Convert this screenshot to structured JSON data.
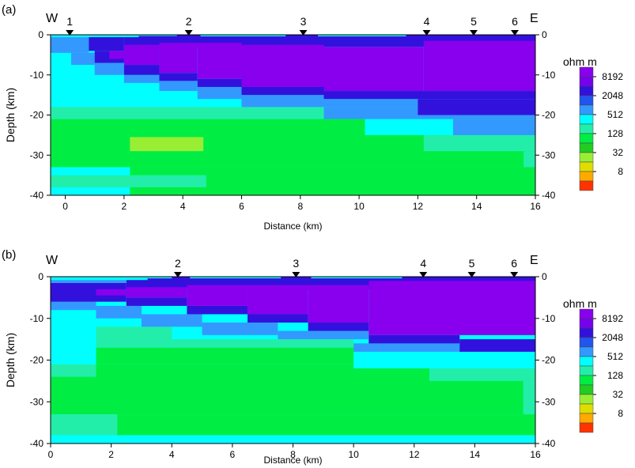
{
  "legend": {
    "title": "ohm m",
    "labels": [
      "8192",
      "2048",
      "512",
      "128",
      "32",
      "8"
    ],
    "scale": [
      {
        "value": 16384,
        "color": "#8800ee"
      },
      {
        "value": 8192,
        "color": "#7700ee"
      },
      {
        "value": 4096,
        "color": "#3311dd"
      },
      {
        "value": 2048,
        "color": "#2255ee"
      },
      {
        "value": 1024,
        "color": "#3399ff"
      },
      {
        "value": 512,
        "color": "#00ffff"
      },
      {
        "value": 256,
        "color": "#22eeaa"
      },
      {
        "value": 128,
        "color": "#00ee44"
      },
      {
        "value": 64,
        "color": "#22cc22"
      },
      {
        "value": 32,
        "color": "#99ee33"
      },
      {
        "value": 16,
        "color": "#dddd00"
      },
      {
        "value": 8,
        "color": "#ffaa00"
      },
      {
        "value": 4,
        "color": "#ff3300"
      }
    ]
  },
  "chart_data": [
    {
      "type": "heatmap",
      "panel_label": "(a)",
      "west_label": "W",
      "east_label": "E",
      "xlabel": "Distance (km)",
      "ylabel": "Depth (km)",
      "xlim": [
        -0.5,
        16
      ],
      "ylim": [
        -40,
        0
      ],
      "x_ticks": [
        0,
        2,
        4,
        6,
        8,
        10,
        12,
        14,
        16
      ],
      "y_ticks": [
        0,
        -10,
        -20,
        -30,
        -40
      ],
      "stations": [
        {
          "label": "1",
          "x": 0.15
        },
        {
          "label": "2",
          "x": 4.2
        },
        {
          "label": "3",
          "x": 8.1
        },
        {
          "label": "4",
          "x": 12.3
        },
        {
          "label": "5",
          "x": 13.9
        },
        {
          "label": "6",
          "x": 15.3
        }
      ],
      "cells": [
        {
          "x0": -0.5,
          "x1": 16,
          "y0": -40,
          "y1": 0,
          "resistivity": 512
        },
        {
          "x0": 2.2,
          "x1": 16,
          "y0": -40,
          "y1": -33,
          "resistivity": 128
        },
        {
          "x0": -0.5,
          "x1": 4.8,
          "y0": -38,
          "y1": -35,
          "resistivity": 256
        },
        {
          "x0": 4.8,
          "x1": 11.0,
          "y0": -38,
          "y1": -35,
          "resistivity": 128
        },
        {
          "x0": -0.5,
          "x1": 16,
          "y0": -33,
          "y1": -21,
          "resistivity": 128
        },
        {
          "x0": 2.2,
          "x1": 4.7,
          "y0": -29,
          "y1": -25.5,
          "resistivity": 32
        },
        {
          "x0": 15.6,
          "x1": 16,
          "y0": -33,
          "y1": -29,
          "resistivity": 256
        },
        {
          "x0": 12.2,
          "x1": 16,
          "y0": -29,
          "y1": -25,
          "resistivity": 256
        },
        {
          "x0": 10.2,
          "x1": 13.2,
          "y0": -25,
          "y1": -21,
          "resistivity": 512
        },
        {
          "x0": -0.5,
          "x1": 8.8,
          "y0": -21,
          "y1": -18,
          "resistivity": 256
        },
        {
          "x0": 8.8,
          "x1": 16,
          "y0": -21,
          "y1": -18,
          "resistivity": 1024
        },
        {
          "x0": 13.2,
          "x1": 16,
          "y0": -25,
          "y1": -21,
          "resistivity": 1024
        },
        {
          "x0": 8.8,
          "x1": 12.0,
          "y0": -18,
          "y1": -16,
          "resistivity": 1024
        },
        {
          "x0": 12.0,
          "x1": 16,
          "y0": -20,
          "y1": -16,
          "resistivity": 4096
        },
        {
          "x0": 6.0,
          "x1": 8.8,
          "y0": -18,
          "y1": -15,
          "resistivity": 1024
        },
        {
          "x0": 8.8,
          "x1": 16,
          "y0": -16,
          "y1": -14,
          "resistivity": 4096
        },
        {
          "x0": 4.5,
          "x1": 6.0,
          "y0": -16,
          "y1": -13,
          "resistivity": 1024
        },
        {
          "x0": 6.0,
          "x1": 8.8,
          "y0": -15,
          "y1": -13,
          "resistivity": 4096
        },
        {
          "x0": 3.2,
          "x1": 4.5,
          "y0": -14,
          "y1": -11.5,
          "resistivity": 1024
        },
        {
          "x0": 2.0,
          "x1": 3.2,
          "y0": -12,
          "y1": -10,
          "resistivity": 1024
        },
        {
          "x0": 1.0,
          "x1": 2.0,
          "y0": -10,
          "y1": -7,
          "resistivity": 1024
        },
        {
          "x0": 0.2,
          "x1": 1.0,
          "y0": -7.5,
          "y1": -4.5,
          "resistivity": 1024
        },
        {
          "x0": -0.5,
          "x1": 0.8,
          "y0": -4.5,
          "y1": 0,
          "resistivity": 1024
        },
        {
          "x0": 4.5,
          "x1": 6.0,
          "y0": -13,
          "y1": -11,
          "resistivity": 4096
        },
        {
          "x0": 3.2,
          "x1": 4.5,
          "y0": -11.5,
          "y1": -9.5,
          "resistivity": 4096
        },
        {
          "x0": 2.0,
          "x1": 3.2,
          "y0": -10,
          "y1": -7.5,
          "resistivity": 4096
        },
        {
          "x0": 1.0,
          "x1": 2.0,
          "y0": -7,
          "y1": -4,
          "resistivity": 4096
        },
        {
          "x0": 0.8,
          "x1": 2.0,
          "y0": -4,
          "y1": 0,
          "resistivity": 4096
        },
        {
          "x0": 2.0,
          "x1": 16,
          "y0": -3,
          "y1": 0,
          "resistivity": 4096
        },
        {
          "x0": 12.2,
          "x1": 16,
          "y0": -14,
          "y1": -1.5,
          "resistivity": 16384
        },
        {
          "x0": 8.8,
          "x1": 12.2,
          "y0": -14,
          "y1": -3,
          "resistivity": 16384
        },
        {
          "x0": 6.0,
          "x1": 8.8,
          "y0": -13,
          "y1": -2.5,
          "resistivity": 16384
        },
        {
          "x0": 4.5,
          "x1": 6.0,
          "y0": -11,
          "y1": -2,
          "resistivity": 16384
        },
        {
          "x0": 3.2,
          "x1": 4.5,
          "y0": -9.5,
          "y1": -2,
          "resistivity": 16384
        },
        {
          "x0": 2.0,
          "x1": 3.2,
          "y0": -7.5,
          "y1": -2.5,
          "resistivity": 16384
        },
        {
          "x0": 1.5,
          "x1": 2.0,
          "y0": -6,
          "y1": -4,
          "resistivity": 16384
        },
        {
          "x0": -0.5,
          "x1": 2.5,
          "y0": -0.6,
          "y1": 0,
          "resistivity": 512
        },
        {
          "x0": 2.5,
          "x1": 3.8,
          "y0": -0.3,
          "y1": 0,
          "resistivity": 512
        },
        {
          "x0": 4.6,
          "x1": 7.5,
          "y0": -0.4,
          "y1": 0,
          "resistivity": 512
        },
        {
          "x0": 8.6,
          "x1": 11.6,
          "y0": -0.4,
          "y1": 0,
          "resistivity": 512
        }
      ]
    },
    {
      "type": "heatmap",
      "panel_label": "(b)",
      "west_label": "W",
      "east_label": "E",
      "xlabel": "Distance (km)",
      "ylabel": "Depth (km)",
      "xlim": [
        0,
        16
      ],
      "ylim": [
        -40,
        0
      ],
      "x_ticks": [
        0,
        2,
        4,
        6,
        8,
        10,
        12,
        14,
        16
      ],
      "y_ticks": [
        0,
        -10,
        -20,
        -30,
        -40
      ],
      "stations": [
        {
          "label": "2",
          "x": 4.2
        },
        {
          "label": "3",
          "x": 8.1
        },
        {
          "label": "4",
          "x": 12.3
        },
        {
          "label": "5",
          "x": 13.9
        },
        {
          "label": "6",
          "x": 15.3
        }
      ],
      "cells": [
        {
          "x0": 0,
          "x1": 16,
          "y0": -40,
          "y1": 0,
          "resistivity": 512
        },
        {
          "x0": 0,
          "x1": 9.0,
          "y0": -38,
          "y1": -33,
          "resistivity": 256
        },
        {
          "x0": 2.2,
          "x1": 16,
          "y0": -38,
          "y1": -33,
          "resistivity": 128
        },
        {
          "x0": 0,
          "x1": 16,
          "y0": -33,
          "y1": -22,
          "resistivity": 128
        },
        {
          "x0": 0,
          "x1": 2.2,
          "y0": -36,
          "y1": -33,
          "resistivity": 256
        },
        {
          "x0": 0,
          "x1": 1.5,
          "y0": -24,
          "y1": -21,
          "resistivity": 256
        },
        {
          "x0": 15.6,
          "x1": 16,
          "y0": -33,
          "y1": -25,
          "resistivity": 256
        },
        {
          "x0": 12.5,
          "x1": 16,
          "y0": -25,
          "y1": -22,
          "resistivity": 256
        },
        {
          "x0": 1.5,
          "x1": 12.5,
          "y0": -24,
          "y1": -21,
          "resistivity": 128
        },
        {
          "x0": 1.5,
          "x1": 10.0,
          "y0": -21,
          "y1": -17,
          "resistivity": 128
        },
        {
          "x0": 10.0,
          "x1": 16,
          "y0": -22,
          "y1": -18,
          "resistivity": 512
        },
        {
          "x0": 1.5,
          "x1": 4.0,
          "y0": -17,
          "y1": -12,
          "resistivity": 256
        },
        {
          "x0": 0,
          "x1": 1.5,
          "y0": -21,
          "y1": -10,
          "resistivity": 512
        },
        {
          "x0": 4.0,
          "x1": 10.0,
          "y0": -17,
          "y1": -15,
          "resistivity": 256
        },
        {
          "x0": 10.0,
          "x1": 13.5,
          "y0": -18,
          "y1": -16,
          "resistivity": 1024
        },
        {
          "x0": 13.5,
          "x1": 16,
          "y0": -18,
          "y1": -15,
          "resistivity": 4096
        },
        {
          "x0": 10.5,
          "x1": 13.5,
          "y0": -16,
          "y1": -14,
          "resistivity": 4096
        },
        {
          "x0": 7.5,
          "x1": 10.5,
          "y0": -15,
          "y1": -13,
          "resistivity": 1024
        },
        {
          "x0": 5.0,
          "x1": 7.5,
          "y0": -14,
          "y1": -11,
          "resistivity": 1024
        },
        {
          "x0": 3.0,
          "x1": 5.0,
          "y0": -12,
          "y1": -9,
          "resistivity": 1024
        },
        {
          "x0": 1.5,
          "x1": 3.0,
          "y0": -10,
          "y1": -7,
          "resistivity": 1024
        },
        {
          "x0": 0,
          "x1": 1.5,
          "y0": -8,
          "y1": -6,
          "resistivity": 1024
        },
        {
          "x0": 8.5,
          "x1": 10.5,
          "y0": -13,
          "y1": -11,
          "resistivity": 4096
        },
        {
          "x0": 6.5,
          "x1": 8.5,
          "y0": -11,
          "y1": -9,
          "resistivity": 4096
        },
        {
          "x0": 4.5,
          "x1": 6.5,
          "y0": -9,
          "y1": -7,
          "resistivity": 4096
        },
        {
          "x0": 2.5,
          "x1": 4.5,
          "y0": -7,
          "y1": -5,
          "resistivity": 4096
        },
        {
          "x0": 0,
          "x1": 2.5,
          "y0": -6,
          "y1": -1.5,
          "resistivity": 4096
        },
        {
          "x0": 2.5,
          "x1": 16,
          "y0": -3,
          "y1": 0,
          "resistivity": 4096
        },
        {
          "x0": 10.5,
          "x1": 16,
          "y0": -14,
          "y1": -1,
          "resistivity": 16384
        },
        {
          "x0": 8.5,
          "x1": 10.5,
          "y0": -11,
          "y1": -2,
          "resistivity": 16384
        },
        {
          "x0": 6.5,
          "x1": 8.5,
          "y0": -9,
          "y1": -2,
          "resistivity": 16384
        },
        {
          "x0": 4.5,
          "x1": 6.5,
          "y0": -7,
          "y1": -2,
          "resistivity": 16384
        },
        {
          "x0": 2.5,
          "x1": 4.5,
          "y0": -5,
          "y1": -2.5,
          "resistivity": 16384
        },
        {
          "x0": 1.5,
          "x1": 2.5,
          "y0": -4.5,
          "y1": -3,
          "resistivity": 16384
        },
        {
          "x0": 0,
          "x1": 2.5,
          "y0": -1.5,
          "y1": 0,
          "resistivity": 1024
        },
        {
          "x0": 0,
          "x1": 3.2,
          "y0": -0.8,
          "y1": 0,
          "resistivity": 512
        },
        {
          "x0": 3.2,
          "x1": 4.0,
          "y0": -0.4,
          "y1": 0,
          "resistivity": 512
        },
        {
          "x0": 4.6,
          "x1": 7.6,
          "y0": -0.4,
          "y1": 0,
          "resistivity": 512
        },
        {
          "x0": 8.6,
          "x1": 11.6,
          "y0": -0.4,
          "y1": 0,
          "resistivity": 512
        }
      ]
    }
  ]
}
